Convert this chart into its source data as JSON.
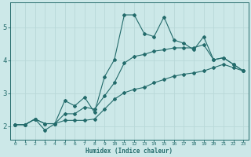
{
  "xlabel": "Humidex (Indice chaleur)",
  "ylabel": "",
  "bg_color": "#cce8e8",
  "grid_color": "#aacccc",
  "line_color": "#236b6b",
  "xlim": [
    -0.5,
    23.5
  ],
  "ylim": [
    1.6,
    5.75
  ],
  "yticks": [
    2,
    3,
    4,
    5
  ],
  "xticks": [
    0,
    1,
    2,
    3,
    4,
    5,
    6,
    7,
    8,
    9,
    10,
    11,
    12,
    13,
    14,
    15,
    16,
    17,
    18,
    19,
    20,
    21,
    22,
    23
  ],
  "x": [
    0,
    1,
    2,
    3,
    4,
    5,
    6,
    7,
    8,
    9,
    10,
    11,
    12,
    13,
    14,
    15,
    16,
    17,
    18,
    19,
    20,
    21,
    22,
    23
  ],
  "line_max": [
    2.05,
    2.05,
    2.22,
    1.88,
    2.08,
    2.78,
    2.62,
    2.88,
    2.42,
    3.5,
    4.02,
    5.38,
    5.38,
    4.82,
    4.72,
    5.32,
    4.62,
    4.52,
    4.32,
    4.72,
    4.02,
    4.08,
    3.88,
    3.68
  ],
  "line_mean": [
    2.05,
    2.05,
    2.22,
    2.08,
    2.08,
    2.38,
    2.38,
    2.58,
    2.52,
    2.92,
    3.32,
    3.92,
    4.12,
    4.18,
    4.28,
    4.32,
    4.38,
    4.38,
    4.38,
    4.48,
    4.02,
    4.08,
    3.88,
    3.68
  ],
  "line_min": [
    2.05,
    2.05,
    2.22,
    2.08,
    2.08,
    2.18,
    2.18,
    2.18,
    2.22,
    2.52,
    2.82,
    3.02,
    3.12,
    3.18,
    3.32,
    3.42,
    3.52,
    3.58,
    3.62,
    3.68,
    3.78,
    3.88,
    3.78,
    3.68
  ]
}
